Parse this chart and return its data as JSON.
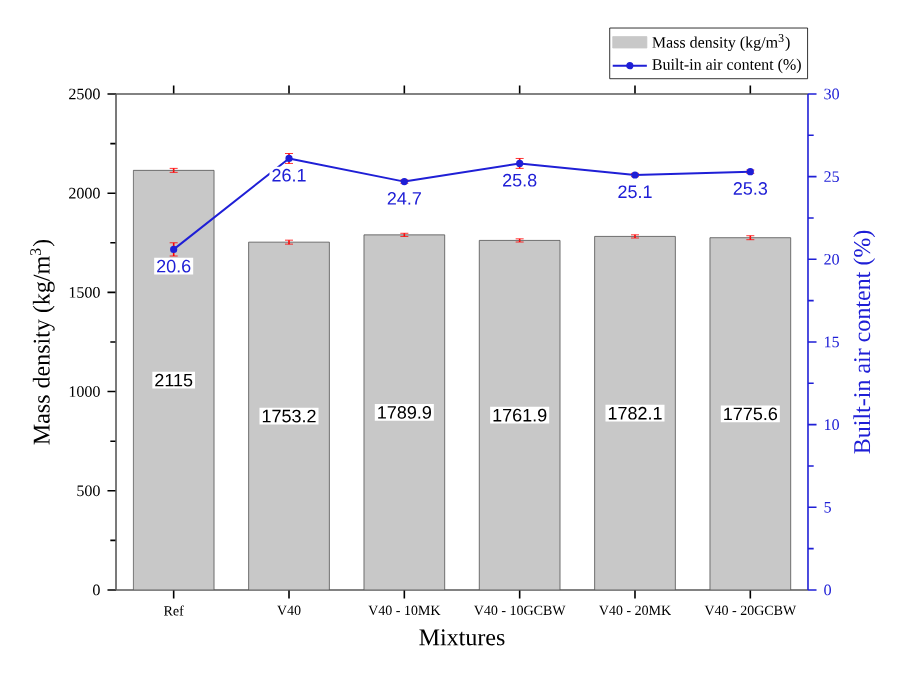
{
  "chart_data": {
    "type": "bar",
    "xlabel": "Mixtures",
    "ylabel": "Mass density (kg/m$^{3}$)",
    "y2label": "Built-in air content (%)",
    "categories": [
      "Ref",
      "V40",
      "V40 - 10MK",
      "V40 - 10GCBW",
      "V40 - 20MK",
      "V40 - 20GCBW"
    ],
    "series": [
      {
        "name": "Mass density (kg/m$^{3}$)",
        "color": "#c8c8c8",
        "values": [
          2115,
          1753.2,
          1789.9,
          1761.9,
          1782.1,
          1775.6
        ],
        "errors": [
          10,
          10,
          8,
          8,
          8,
          10
        ]
      },
      {
        "name": "Built-in air content (%)",
        "type": "line",
        "axis": "y2",
        "color": "#1f1fd6",
        "values": [
          20.6,
          26.1,
          24.7,
          25.8,
          25.1,
          25.3
        ],
        "errors": [
          0.4,
          0.3,
          0.1,
          0.3,
          0.1,
          0.1
        ]
      }
    ],
    "ylim": [
      0,
      2500
    ],
    "yticks": [
      0,
      500,
      1000,
      1500,
      2000,
      2500
    ],
    "y2lim": [
      0,
      30
    ],
    "y2ticks": [
      0,
      5,
      10,
      15,
      20,
      25,
      30
    ],
    "data_labels": true,
    "legend": "top right",
    "marker": "circle"
  }
}
